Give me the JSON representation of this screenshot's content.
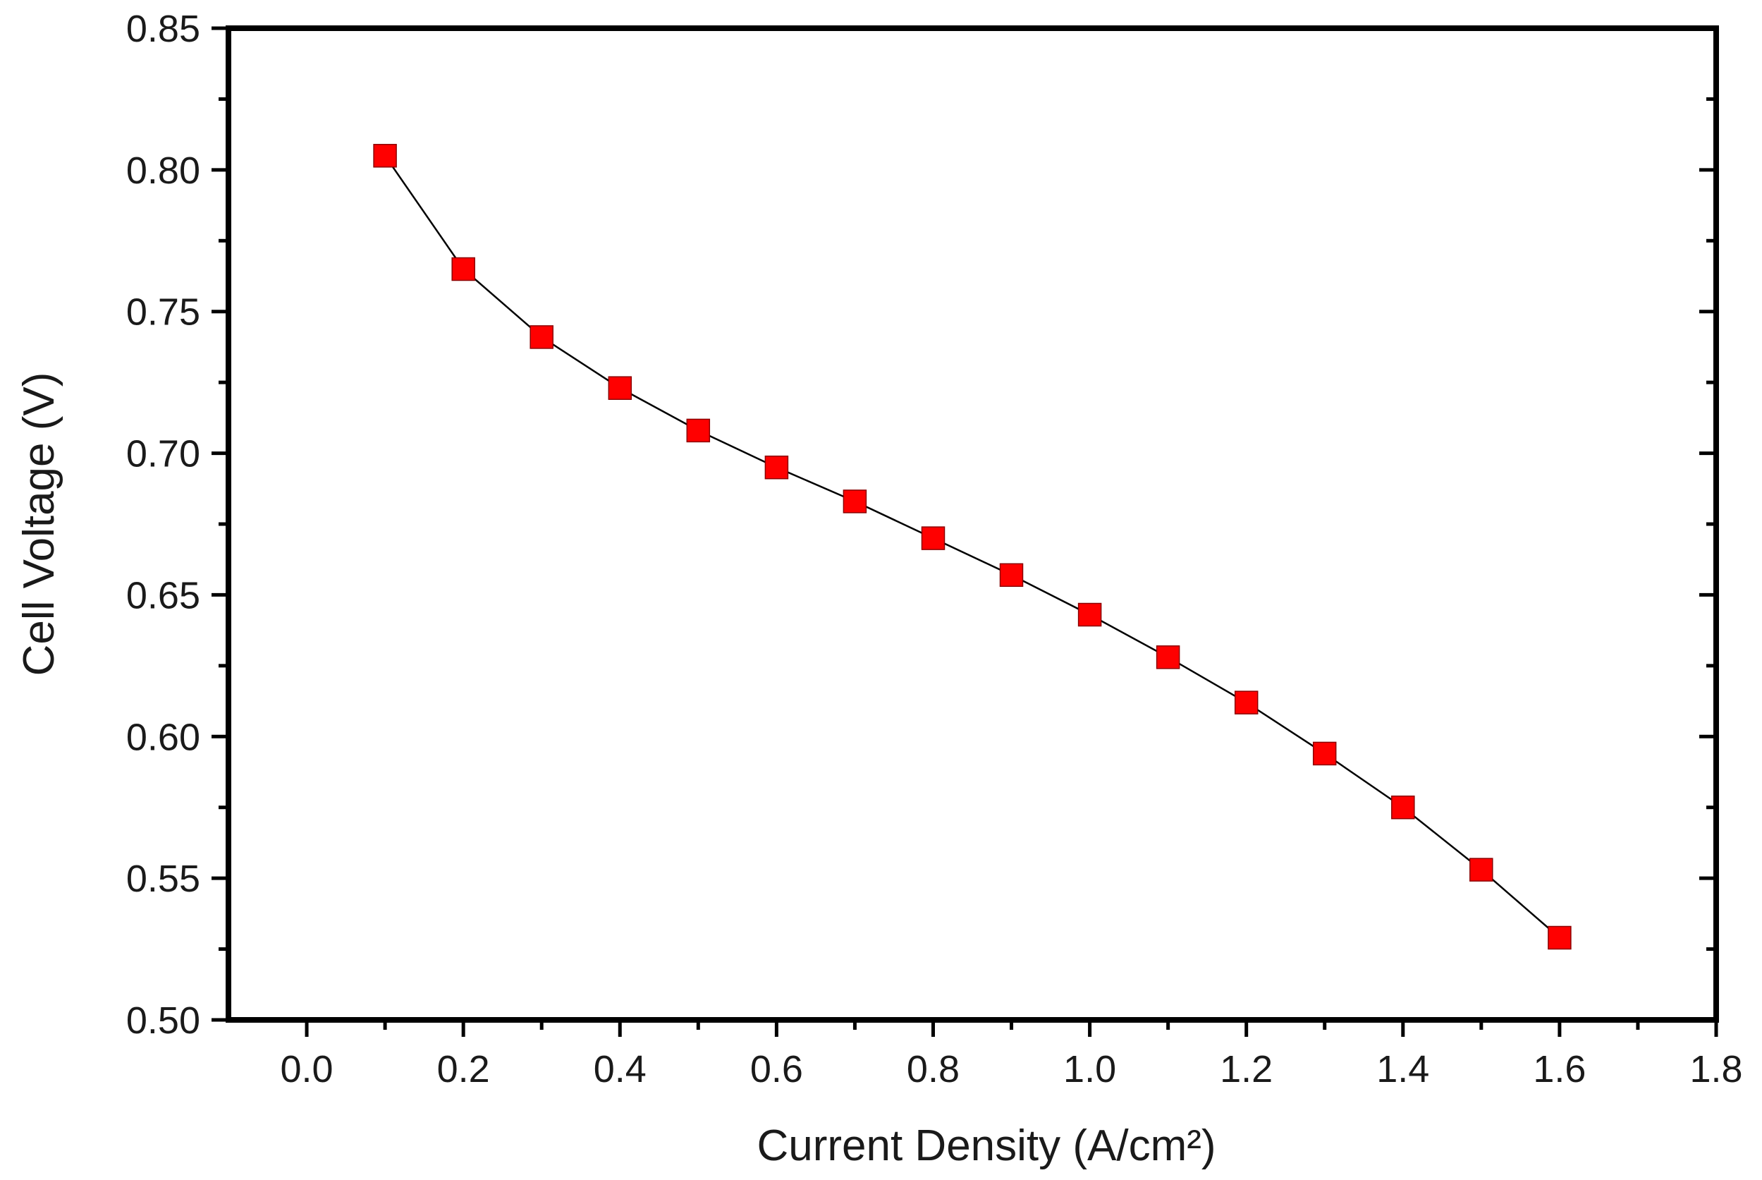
{
  "chart_data": {
    "type": "line",
    "title": "",
    "xlabel": "Current Density (A/cm²)",
    "ylabel": "Cell Voltage (V)",
    "xlim": [
      -0.1,
      1.8
    ],
    "ylim": [
      0.5,
      0.85
    ],
    "x_ticks": [
      0.0,
      0.2,
      0.4,
      0.6,
      0.8,
      1.0,
      1.2,
      1.4,
      1.6,
      1.8
    ],
    "x_tick_labels": [
      "0.0",
      "0.2",
      "0.4",
      "0.6",
      "0.8",
      "1.0",
      "1.2",
      "1.4",
      "1.6",
      "1.8"
    ],
    "y_ticks": [
      0.5,
      0.55,
      0.6,
      0.65,
      0.7,
      0.75,
      0.8,
      0.85
    ],
    "y_tick_labels": [
      "0.50",
      "0.55",
      "0.60",
      "0.65",
      "0.70",
      "0.75",
      "0.80",
      "0.85"
    ],
    "grid": false,
    "legend": "none",
    "series": [
      {
        "marker": "square",
        "marker_color": "#ff0000",
        "line_color": "#000000",
        "x": [
          0.1,
          0.2,
          0.3,
          0.4,
          0.5,
          0.6,
          0.7,
          0.8,
          0.9,
          1.0,
          1.1,
          1.2,
          1.3,
          1.4,
          1.5,
          1.6
        ],
        "y": [
          0.805,
          0.765,
          0.741,
          0.723,
          0.708,
          0.695,
          0.683,
          0.67,
          0.657,
          0.643,
          0.628,
          0.612,
          0.594,
          0.575,
          0.553,
          0.529
        ]
      }
    ]
  }
}
